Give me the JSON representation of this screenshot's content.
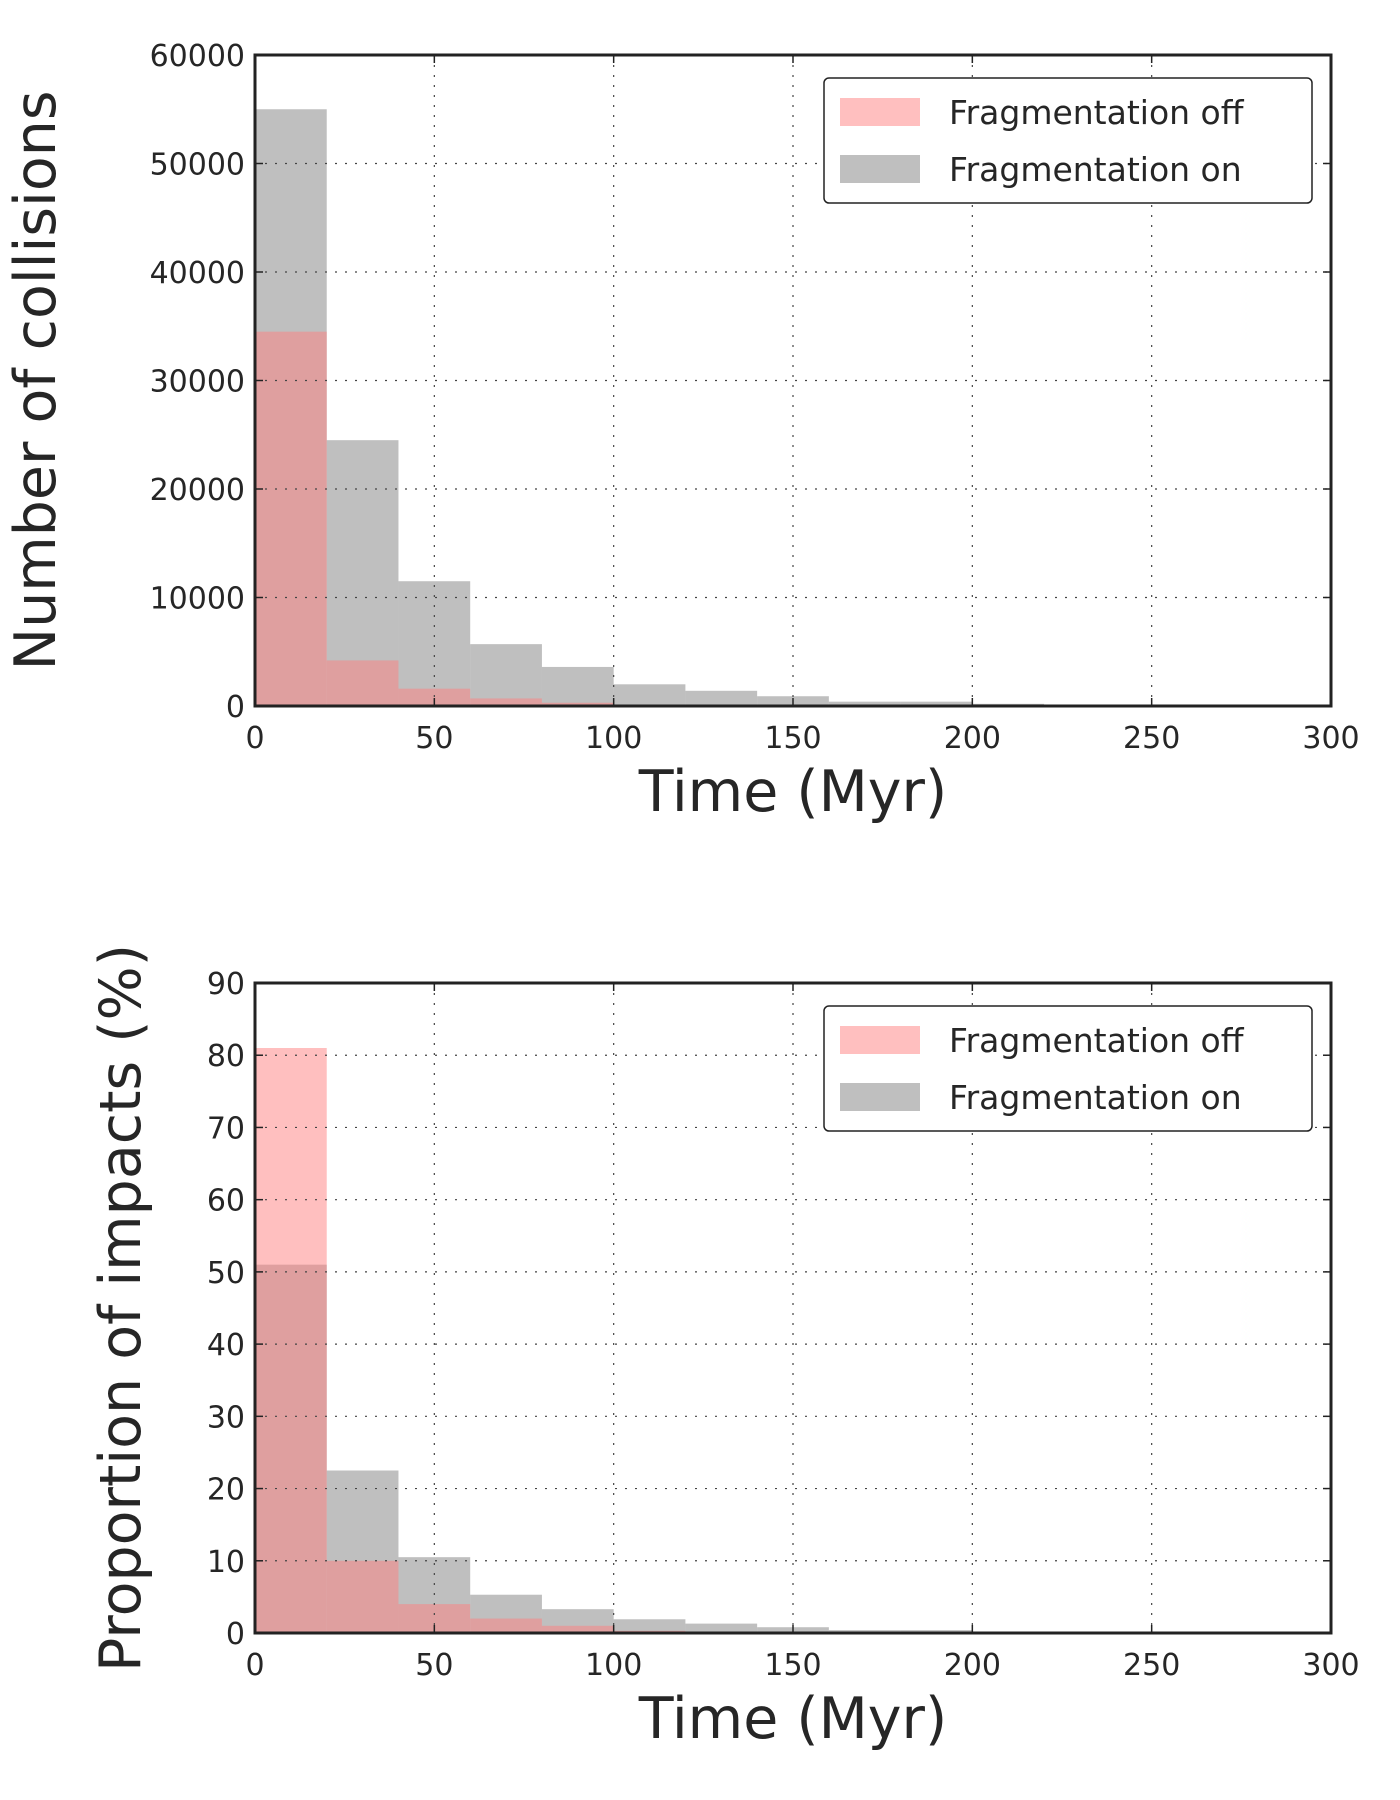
{
  "colors": {
    "off": "#ff8080",
    "on": "#808080",
    "overlap": "#bf9797"
  },
  "chart_data": [
    {
      "type": "bar",
      "subtype": "histogram",
      "bin_edges": [
        0,
        20,
        40,
        60,
        80,
        100,
        120,
        140,
        160,
        180,
        200,
        220,
        240
      ],
      "series": [
        {
          "name": "Fragmentation off",
          "values": [
            34500,
            4200,
            1600,
            700,
            300,
            100,
            50,
            30,
            10,
            5,
            2,
            0
          ]
        },
        {
          "name": "Fragmentation on",
          "values": [
            55000,
            24500,
            11500,
            5700,
            3600,
            2000,
            1400,
            900,
            400,
            400,
            200,
            50
          ]
        }
      ],
      "xlabel": "Time (Myr)",
      "ylabel": "Number of collisions",
      "xlim": [
        0,
        300
      ],
      "ylim": [
        0,
        60000
      ],
      "xticks": [
        "0",
        "50",
        "100",
        "150",
        "200",
        "250",
        "300"
      ],
      "yticks": [
        "0",
        "10000",
        "20000",
        "30000",
        "40000",
        "50000",
        "60000"
      ],
      "grid": true,
      "legend": "top-right"
    },
    {
      "type": "bar",
      "subtype": "histogram",
      "bin_edges": [
        0,
        20,
        40,
        60,
        80,
        100,
        120,
        140,
        160,
        180,
        200,
        220,
        240
      ],
      "series": [
        {
          "name": "Fragmentation off",
          "values": [
            81,
            10,
            4,
            2,
            1,
            0.3,
            0.15,
            0.1,
            0.05,
            0.02,
            0.01,
            0
          ]
        },
        {
          "name": "Fragmentation on",
          "values": [
            51,
            22.5,
            10.5,
            5.3,
            3.3,
            1.9,
            1.3,
            0.8,
            0.4,
            0.4,
            0.2,
            0.05
          ]
        }
      ],
      "xlabel": "Time (Myr)",
      "ylabel": "Proportion of impacts (%)",
      "xlim": [
        0,
        300
      ],
      "ylim": [
        0,
        90
      ],
      "xticks": [
        "0",
        "50",
        "100",
        "150",
        "200",
        "250",
        "300"
      ],
      "yticks": [
        "0",
        "10",
        "20",
        "30",
        "40",
        "50",
        "60",
        "70",
        "80",
        "90"
      ],
      "grid": true,
      "legend": "top-right"
    }
  ]
}
